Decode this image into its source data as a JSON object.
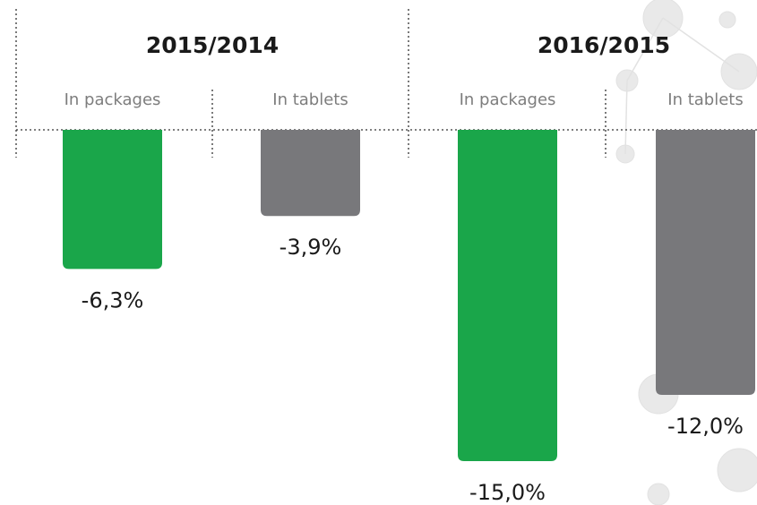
{
  "chart_data": {
    "type": "bar",
    "groups": [
      "2015/2014",
      "2016/2015"
    ],
    "categories": [
      "In packages",
      "In tablets",
      "In packages",
      "In tablets"
    ],
    "values": [
      -6.3,
      -3.9,
      -15.0,
      -12.0
    ],
    "value_labels": [
      "-6,3%",
      "-3,9%",
      "-15,0%",
      "-12,0%"
    ],
    "colors": [
      "#1aa64a",
      "#78787b",
      "#1aa64a",
      "#78787b"
    ]
  }
}
